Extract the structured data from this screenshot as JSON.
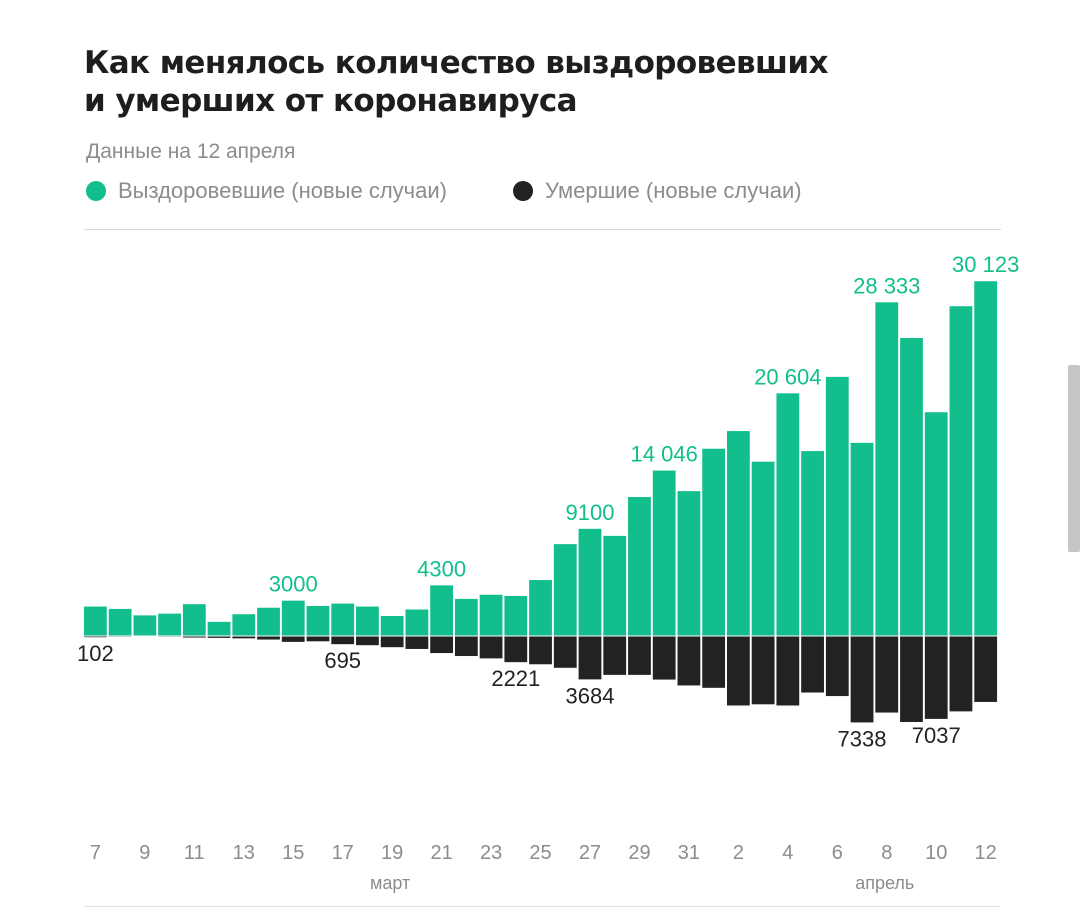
{
  "header": {
    "title_line1": "Как менялось количество выздоровевших",
    "title_line2": "и умерших от коронавируса",
    "subtitle": "Данные на 12 апреля"
  },
  "colors": {
    "recovered": "#12bf8c",
    "deaths": "#222222",
    "axis_text": "#8c8c8c",
    "label_text": "#222222"
  },
  "chart_data": {
    "type": "bar",
    "title": "Как менялось количество выздоровевших и умерших от коронавируса",
    "subtitle": "Данные на 12 апреля",
    "legend": [
      "Выздоровевшие (новые случаи)",
      "Умершие (новые случаи)"
    ],
    "legend_placement": "top-left",
    "x": [
      "7 март",
      "8 март",
      "9 март",
      "10 март",
      "11 март",
      "12 март",
      "13 март",
      "14 март",
      "15 март",
      "16 март",
      "17 март",
      "18 март",
      "19 март",
      "20 март",
      "21 март",
      "22 март",
      "23 март",
      "24 март",
      "25 март",
      "26 март",
      "27 март",
      "28 март",
      "29 март",
      "30 март",
      "31 март",
      "1 апрель",
      "2 апрель",
      "3 апрель",
      "4 апрель",
      "5 апрель",
      "6 апрель",
      "7 апрель",
      "8 апрель",
      "9 апрель",
      "10 апрель",
      "11 апрель",
      "12 апрель"
    ],
    "series": [
      {
        "name": "Выздоровевшие (новые случаи)",
        "direction": "up",
        "values": [
          2500,
          2300,
          1750,
          1900,
          2700,
          1200,
          1850,
          2400,
          3000,
          2550,
          2750,
          2500,
          1700,
          2250,
          4300,
          3150,
          3500,
          3400,
          4750,
          7800,
          9100,
          8500,
          11800,
          14046,
          12300,
          15900,
          17400,
          14800,
          20604,
          15700,
          22000,
          16400,
          28333,
          25300,
          19000,
          28000,
          30123
        ]
      },
      {
        "name": "Умершие (новые случаи)",
        "direction": "down",
        "values": [
          102,
          60,
          40,
          60,
          130,
          160,
          200,
          300,
          500,
          450,
          695,
          780,
          950,
          1100,
          1450,
          1700,
          1900,
          2221,
          2400,
          2700,
          3684,
          3300,
          3300,
          3700,
          4200,
          4400,
          5900,
          5800,
          5900,
          4800,
          5100,
          7338,
          6500,
          7300,
          7037,
          6400,
          5600
        ]
      }
    ],
    "value_labels": [
      {
        "series": "Выздоровевшие (новые случаи)",
        "index": 8,
        "text": "3000"
      },
      {
        "series": "Выздоровевшие (новые случаи)",
        "index": 14,
        "text": "4300"
      },
      {
        "series": "Выздоровевшие (новые случаи)",
        "index": 20,
        "text": "9100"
      },
      {
        "series": "Выздоровевшие (новые случаи)",
        "index": 23,
        "text": "14 046"
      },
      {
        "series": "Выздоровевшие (новые случаи)",
        "index": 28,
        "text": "20 604"
      },
      {
        "series": "Выздоровевшие (новые случаи)",
        "index": 32,
        "text": "28 333"
      },
      {
        "series": "Выздоровевшие (новые случаи)",
        "index": 36,
        "text": "30 123"
      },
      {
        "series": "Умершие (новые случаи)",
        "index": 0,
        "text": "102"
      },
      {
        "series": "Умершие (новые случаи)",
        "index": 10,
        "text": "695"
      },
      {
        "series": "Умершие (новые случаи)",
        "index": 17,
        "text": "2221"
      },
      {
        "series": "Умершие (новые случаи)",
        "index": 20,
        "text": "3684"
      },
      {
        "series": "Умершие (новые случаи)",
        "index": 31,
        "text": "7338"
      },
      {
        "series": "Умершие (новые случаи)",
        "index": 34,
        "text": "7037"
      }
    ],
    "x_ticks": [
      {
        "index": 0,
        "text": "7"
      },
      {
        "index": 2,
        "text": "9"
      },
      {
        "index": 4,
        "text": "11"
      },
      {
        "index": 6,
        "text": "13"
      },
      {
        "index": 8,
        "text": "15"
      },
      {
        "index": 10,
        "text": "17"
      },
      {
        "index": 12,
        "text": "19"
      },
      {
        "index": 14,
        "text": "21"
      },
      {
        "index": 16,
        "text": "23"
      },
      {
        "index": 18,
        "text": "25"
      },
      {
        "index": 20,
        "text": "27"
      },
      {
        "index": 22,
        "text": "29"
      },
      {
        "index": 24,
        "text": "31"
      },
      {
        "index": 26,
        "text": "2"
      },
      {
        "index": 28,
        "text": "4"
      },
      {
        "index": 30,
        "text": "6"
      },
      {
        "index": 32,
        "text": "8"
      },
      {
        "index": 34,
        "text": "10"
      },
      {
        "index": 36,
        "text": "12"
      }
    ],
    "month_labels": [
      {
        "index": 12,
        "text": "март"
      },
      {
        "index": 32,
        "text": "апрель"
      }
    ],
    "ylim_up": [
      0,
      31500
    ],
    "ylim_down": [
      0,
      31500
    ],
    "grid": false
  }
}
